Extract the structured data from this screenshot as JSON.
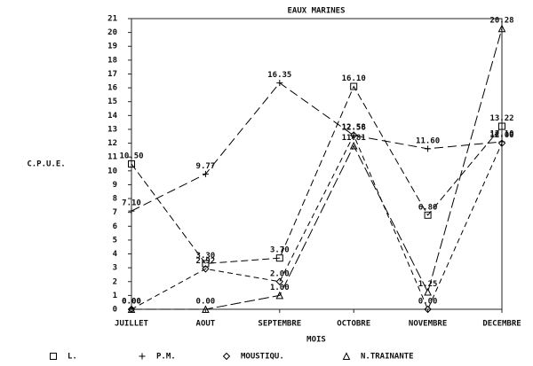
{
  "chart_data": {
    "type": "line",
    "title": "EAUX MARINES",
    "x_label": "MOIS",
    "y_label": "C.P.U.E.",
    "categories": [
      "JUILLET",
      "AOUT",
      "SEPTEMBRE",
      "OCTOBRE",
      "NOVEMBRE",
      "DECEMBRE"
    ],
    "ylim": [
      0,
      21
    ],
    "yticks": [
      0,
      1,
      2,
      3,
      4,
      5,
      6,
      7,
      8,
      9,
      10,
      11,
      12,
      13,
      14,
      15,
      16,
      17,
      18,
      19,
      20,
      21
    ],
    "series": [
      {
        "name": "L.",
        "marker": "square",
        "color": "#000000",
        "values": [
          10.5,
          3.3,
          3.7,
          16.1,
          6.8,
          13.22
        ],
        "value_labels": [
          "10.50",
          "3.30",
          "3.70",
          "16.10",
          "6.80",
          "13.22"
        ]
      },
      {
        "name": "P.M.",
        "marker": "plus",
        "color": "#000000",
        "values": [
          7.1,
          9.77,
          16.35,
          12.56,
          11.6,
          12.1
        ],
        "value_labels": [
          "7.10",
          "9.77",
          "16.35",
          "12.56",
          "11.60",
          "12.10"
        ]
      },
      {
        "name": "MOUSTIQU.",
        "marker": "diamond",
        "color": "#000000",
        "values": [
          0,
          2.92,
          2,
          12.58,
          0,
          12
        ],
        "value_labels": [
          "0.00",
          "2.92",
          "2.00",
          "12.58",
          "0.00",
          "12.00"
        ]
      },
      {
        "name": "N.TRAINANTE",
        "marker": "triangle",
        "color": "#000000",
        "values": [
          0,
          0,
          1,
          11.81,
          1.25,
          20.28
        ],
        "value_labels": [
          "0.00",
          "0.00",
          "1.00",
          "11.81",
          "1.25",
          "20.28"
        ]
      }
    ]
  }
}
